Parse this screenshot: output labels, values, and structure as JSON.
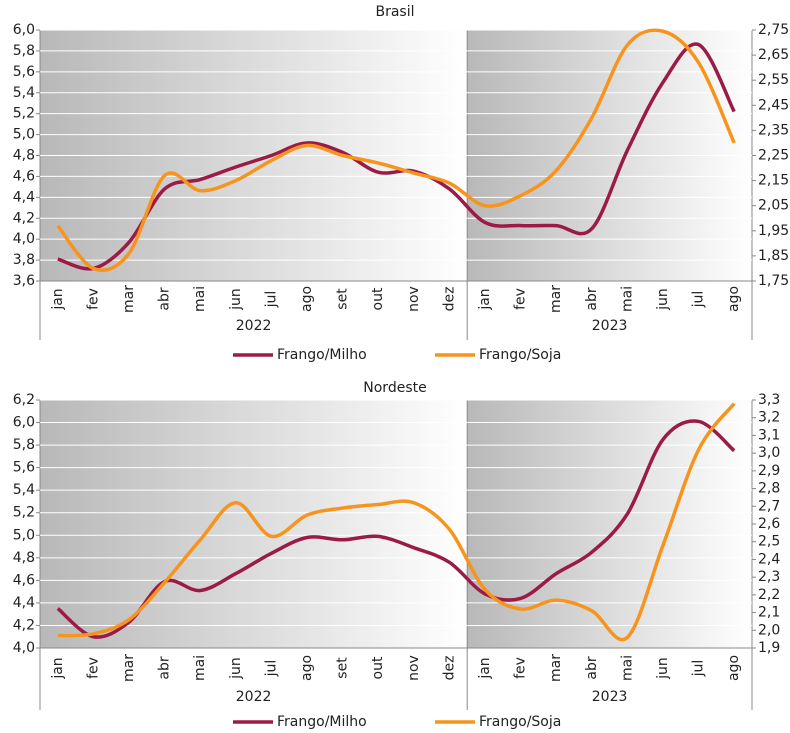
{
  "chart_data": [
    {
      "type": "line",
      "title": "Brasil",
      "groups": [
        {
          "label": "2022",
          "categories": [
            "jan",
            "fev",
            "mar",
            "abr",
            "mai",
            "jun",
            "jul",
            "ago",
            "set",
            "out",
            "nov",
            "dez"
          ]
        },
        {
          "label": "2023",
          "categories": [
            "jan",
            "fev",
            "mar",
            "abr",
            "mai",
            "jun",
            "jul",
            "ago"
          ]
        }
      ],
      "series": [
        {
          "name": "Frango/Milho",
          "color": "#9b1b46",
          "values": [
            3.81,
            3.72,
            3.97,
            4.48,
            4.57,
            4.69,
            4.8,
            4.92,
            4.83,
            4.64,
            4.65,
            4.48,
            4.16,
            4.13,
            4.13,
            4.1,
            4.85,
            5.5,
            5.86,
            5.22
          ]
        },
        {
          "name": "Frango/Soja",
          "color": "#f7941d",
          "axis": "y2",
          "values": [
            1.97,
            1.8,
            1.86,
            2.17,
            2.11,
            2.15,
            2.23,
            2.29,
            2.25,
            2.22,
            2.18,
            2.14,
            2.05,
            2.09,
            2.19,
            2.4,
            2.69,
            2.745,
            2.62,
            2.3
          ]
        }
      ],
      "ylim": [
        3.6,
        6.0
      ],
      "yticks": [
        {
          "value": 3.6,
          "label": "3,6"
        },
        {
          "value": 3.8,
          "label": "3,8"
        },
        {
          "value": 4.0,
          "label": "4,0"
        },
        {
          "value": 4.2,
          "label": "4,2"
        },
        {
          "value": 4.4,
          "label": "4,4"
        },
        {
          "value": 4.6,
          "label": "4,6"
        },
        {
          "value": 4.8,
          "label": "4,8"
        },
        {
          "value": 5.0,
          "label": "5,0"
        },
        {
          "value": 5.2,
          "label": "5,2"
        },
        {
          "value": 5.4,
          "label": "5,4"
        },
        {
          "value": 5.6,
          "label": "5,6"
        },
        {
          "value": 5.8,
          "label": "5,8"
        },
        {
          "value": 6.0,
          "label": "6,0"
        }
      ],
      "y2lim": [
        1.75,
        2.75
      ],
      "y2ticks": [
        {
          "value": 1.75,
          "label": "1,75"
        },
        {
          "value": 1.85,
          "label": "1,85"
        },
        {
          "value": 1.95,
          "label": "1,95"
        },
        {
          "value": 2.05,
          "label": "2,05"
        },
        {
          "value": 2.15,
          "label": "2,15"
        },
        {
          "value": 2.25,
          "label": "2,25"
        },
        {
          "value": 2.35,
          "label": "2,35"
        },
        {
          "value": 2.45,
          "label": "2,45"
        },
        {
          "value": 2.55,
          "label": "2,55"
        },
        {
          "value": 2.65,
          "label": "2,65"
        },
        {
          "value": 2.75,
          "label": "2,75"
        }
      ]
    },
    {
      "type": "line",
      "title": "Nordeste",
      "groups": [
        {
          "label": "2022",
          "categories": [
            "jan",
            "fev",
            "mar",
            "abr",
            "mai",
            "jun",
            "jul",
            "ago",
            "set",
            "out",
            "nov",
            "dez"
          ]
        },
        {
          "label": "2023",
          "categories": [
            "jan",
            "fev",
            "mar",
            "abr",
            "mai",
            "jun",
            "jul",
            "ago"
          ]
        }
      ],
      "series": [
        {
          "name": "Frango/Milho",
          "color": "#9b1b46",
          "values": [
            4.35,
            4.1,
            4.23,
            4.59,
            4.51,
            4.66,
            4.84,
            4.98,
            4.96,
            4.99,
            4.89,
            4.76,
            4.48,
            4.44,
            4.66,
            4.85,
            5.19,
            5.85,
            6.01,
            5.75
          ]
        },
        {
          "name": "Frango/Soja",
          "color": "#f7941d",
          "axis": "y2",
          "values": [
            1.97,
            1.98,
            2.06,
            2.27,
            2.51,
            2.72,
            2.53,
            2.65,
            2.69,
            2.71,
            2.72,
            2.57,
            2.23,
            2.12,
            2.17,
            2.11,
            1.96,
            2.48,
            3.02,
            3.28
          ]
        }
      ],
      "ylim": [
        4.0,
        6.2
      ],
      "yticks": [
        {
          "value": 4.0,
          "label": "4,0"
        },
        {
          "value": 4.2,
          "label": "4,2"
        },
        {
          "value": 4.4,
          "label": "4,4"
        },
        {
          "value": 4.6,
          "label": "4,6"
        },
        {
          "value": 4.8,
          "label": "4,8"
        },
        {
          "value": 5.0,
          "label": "5,0"
        },
        {
          "value": 5.2,
          "label": "5,2"
        },
        {
          "value": 5.4,
          "label": "5,4"
        },
        {
          "value": 5.6,
          "label": "5,6"
        },
        {
          "value": 5.8,
          "label": "5,8"
        },
        {
          "value": 6.0,
          "label": "6,0"
        },
        {
          "value": 6.2,
          "label": "6,2"
        }
      ],
      "y2lim": [
        1.9,
        3.3
      ],
      "y2ticks": [
        {
          "value": 1.9,
          "label": "1,9"
        },
        {
          "value": 2.0,
          "label": "2,0"
        },
        {
          "value": 2.1,
          "label": "2,1"
        },
        {
          "value": 2.2,
          "label": "2,2"
        },
        {
          "value": 2.3,
          "label": "2,3"
        },
        {
          "value": 2.4,
          "label": "2,4"
        },
        {
          "value": 2.5,
          "label": "2,5"
        },
        {
          "value": 2.6,
          "label": "2,6"
        },
        {
          "value": 2.7,
          "label": "2,7"
        },
        {
          "value": 2.8,
          "label": "2,8"
        },
        {
          "value": 2.9,
          "label": "2,9"
        },
        {
          "value": 3.0,
          "label": "3,0"
        },
        {
          "value": 3.1,
          "label": "3,1"
        },
        {
          "value": 3.2,
          "label": "3,2"
        },
        {
          "value": 3.3,
          "label": "3,3"
        }
      ]
    }
  ]
}
